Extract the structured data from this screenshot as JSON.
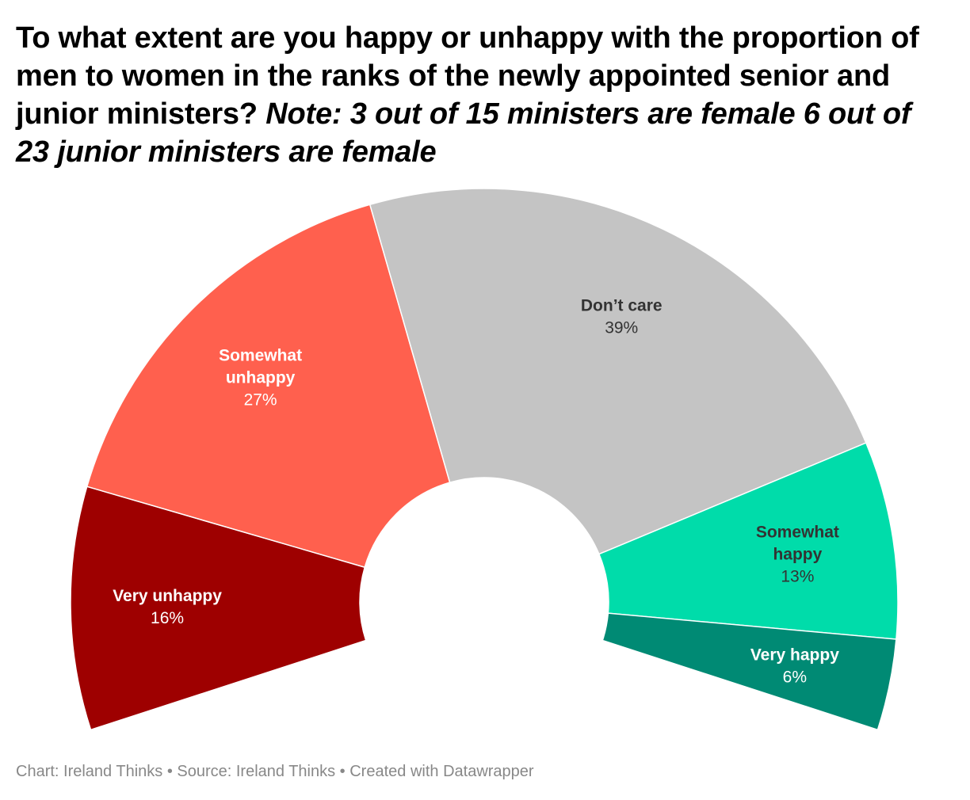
{
  "title": {
    "main": "To what extent are you happy or unhappy with the proportion of men to women in the ranks of the newly appointed senior and junior ministers?",
    "note": "Note: 3 out of 15 ministers are female 6 out of 23 junior ministers are female"
  },
  "chart_data": {
    "type": "pie",
    "variant": "semicircle-donut",
    "title": "To what extent are you happy or unhappy with the proportion of men to women in the ranks of the newly appointed senior and junior ministers? Note: 3 out of 15 ministers are female 6 out of 23 junior ministers are female",
    "slices": [
      {
        "label": "Very unhappy",
        "label_lines": [
          "Very unhappy"
        ],
        "value": 16,
        "value_label": "16%",
        "color": "#9e0000",
        "text_color": "#ffffff"
      },
      {
        "label": "Somewhat unhappy",
        "label_lines": [
          "Somewhat",
          "unhappy"
        ],
        "value": 27,
        "value_label": "27%",
        "color": "#ff604e",
        "text_color": "#ffffff"
      },
      {
        "label": "Don’t care",
        "label_lines": [
          "Don’t care"
        ],
        "value": 39,
        "value_label": "39%",
        "color": "#c4c4c4",
        "text_color": "#333333"
      },
      {
        "label": "Somewhat happy",
        "label_lines": [
          "Somewhat",
          "happy"
        ],
        "value": 13,
        "value_label": "13%",
        "color": "#00dcaa",
        "text_color": "#333333"
      },
      {
        "label": "Very happy",
        "label_lines": [
          "Very happy"
        ],
        "value": 6,
        "value_label": "6%",
        "color": "#008a74",
        "text_color": "#ffffff"
      }
    ]
  },
  "footer": {
    "text": "Chart: Ireland Thinks • Source: Ireland Thinks • Created with Datawrapper"
  }
}
